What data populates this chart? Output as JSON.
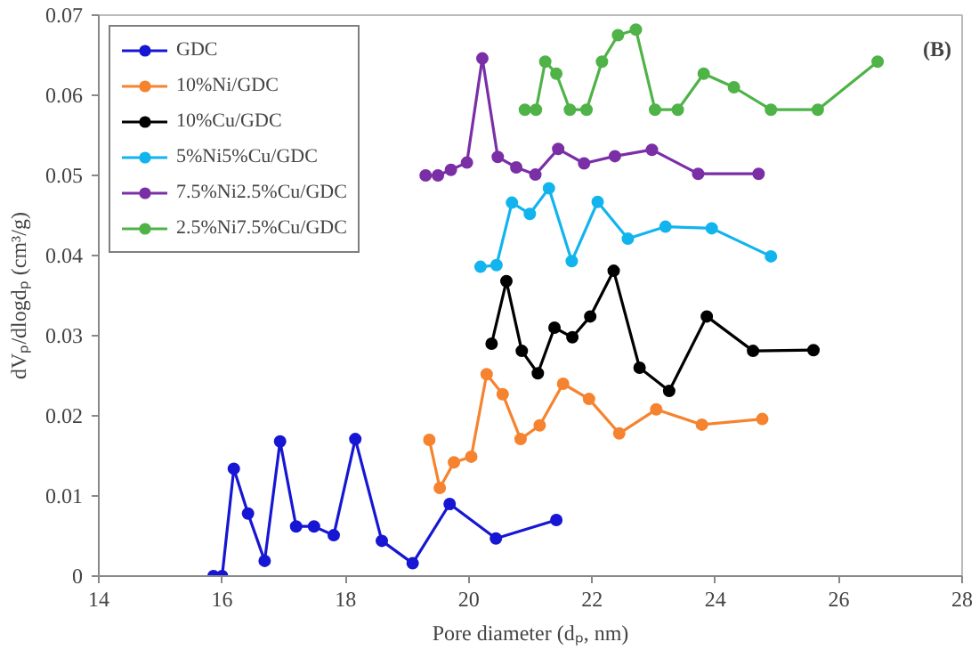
{
  "chart_data": {
    "type": "line",
    "xlabel": "Pore diameter (dₚ, nm)",
    "ylabel": "dVₚ/dlogdₚ (cm³/g)",
    "annotations": [
      "(B)"
    ],
    "xlim": [
      14,
      28
    ],
    "xticks": [
      14,
      16,
      18,
      20,
      22,
      24,
      26,
      28
    ],
    "ylim": [
      0,
      0.07
    ],
    "yticks": [
      0,
      0.01,
      0.02,
      0.03,
      0.04,
      0.05,
      0.06,
      0.07
    ],
    "grid": false,
    "legend": "top left",
    "marker": "circle",
    "line_style": "solid",
    "series": [
      {
        "name": "GDC",
        "color": "#1616d4",
        "x": [
          15.86,
          16.0,
          16.19,
          16.42,
          16.69,
          16.94,
          17.2,
          17.49,
          17.81,
          18.16,
          18.59,
          19.09,
          19.69,
          20.44,
          21.42
        ],
        "values": [
          0.0,
          0.0,
          0.0134,
          0.0078,
          0.0019,
          0.0168,
          0.0062,
          0.0062,
          0.0051,
          0.0171,
          0.0044,
          0.0016,
          0.009,
          0.0047,
          0.007
        ]
      },
      {
        "name": "10%Ni/GDC",
        "color": "#f5832f",
        "x": [
          19.36,
          19.53,
          19.76,
          20.04,
          20.29,
          20.55,
          20.84,
          21.15,
          21.53,
          21.95,
          22.44,
          23.04,
          23.78,
          24.76
        ],
        "values": [
          0.017,
          0.011,
          0.0142,
          0.0149,
          0.0252,
          0.0227,
          0.0171,
          0.0188,
          0.024,
          0.0221,
          0.0178,
          0.0208,
          0.0189,
          0.0196
        ]
      },
      {
        "name": "10%Cu/GDC",
        "color": "#000000",
        "x": [
          20.37,
          20.61,
          20.86,
          21.12,
          21.39,
          21.68,
          21.97,
          22.35,
          22.77,
          23.25,
          23.86,
          24.61,
          25.59
        ],
        "values": [
          0.029,
          0.0368,
          0.0281,
          0.0253,
          0.031,
          0.0298,
          0.0324,
          0.0381,
          0.026,
          0.0231,
          0.0324,
          0.0281,
          0.0282
        ]
      },
      {
        "name": "5%Ni5%Cu/GDC",
        "color": "#12b4ee",
        "x": [
          20.19,
          20.45,
          20.7,
          20.99,
          21.3,
          21.67,
          22.09,
          22.58,
          23.19,
          23.94,
          24.9
        ],
        "values": [
          0.0386,
          0.0388,
          0.0466,
          0.0452,
          0.0484,
          0.0393,
          0.0467,
          0.0421,
          0.0436,
          0.0434,
          0.0399
        ]
      },
      {
        "name": "7.5%Ni2.5%Cu/GDC",
        "color": "#7a2fa6",
        "x": [
          19.3,
          19.5,
          19.71,
          19.97,
          20.22,
          20.47,
          20.77,
          21.08,
          21.45,
          21.87,
          22.37,
          22.97,
          23.72,
          24.7
        ],
        "values": [
          0.05,
          0.05,
          0.0507,
          0.0516,
          0.0646,
          0.0523,
          0.051,
          0.0501,
          0.0533,
          0.0515,
          0.0524,
          0.0532,
          0.0502,
          0.0502
        ]
      },
      {
        "name": "2.5%Ni7.5%Cu/GDC",
        "color": "#4fb348",
        "x": [
          20.91,
          21.09,
          21.24,
          21.42,
          21.64,
          21.91,
          22.16,
          22.42,
          22.71,
          23.02,
          23.39,
          23.81,
          24.3,
          24.9,
          25.66,
          26.63
        ],
        "values": [
          0.0582,
          0.0582,
          0.0642,
          0.0627,
          0.0582,
          0.0582,
          0.0642,
          0.0675,
          0.0682,
          0.0582,
          0.0582,
          0.0627,
          0.061,
          0.0582,
          0.0582,
          0.0642
        ]
      }
    ]
  }
}
